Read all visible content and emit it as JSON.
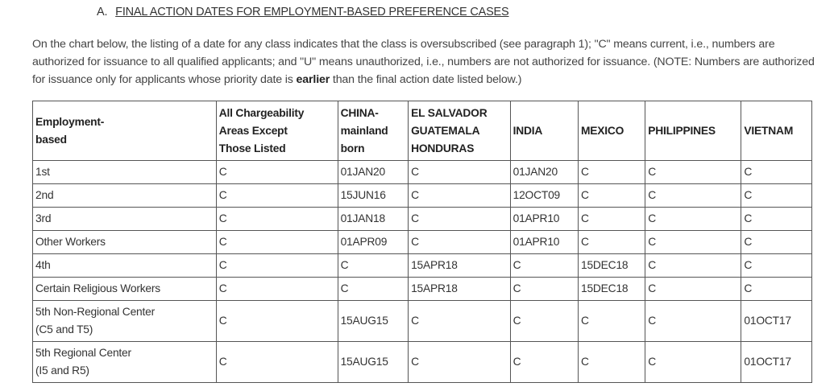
{
  "heading": {
    "letter": "A.",
    "title": "FINAL ACTION DATES FOR EMPLOYMENT-BASED PREFERENCE CASES"
  },
  "intro": {
    "text_before": "On the chart below, the listing of a date for any class indicates that the class is oversubscribed (see paragraph 1); \"C\" means current, i.e., numbers are authorized for issuance to all qualified applicants; and \"U\" means unauthorized, i.e., numbers are not authorized for issuance. (NOTE: Numbers are authorized for issuance only for applicants whose priority date is ",
    "emphasis": "earlier",
    "text_after": " than the final action date listed below.)"
  },
  "table": {
    "headers": [
      [
        "Employment-",
        "based"
      ],
      [
        "All Chargeability",
        "Areas Except",
        "Those Listed"
      ],
      [
        "CHINA-",
        "mainland",
        "born"
      ],
      [
        "EL SALVADOR",
        "GUATEMALA",
        "HONDURAS"
      ],
      [
        "INDIA"
      ],
      [
        "MEXICO"
      ],
      [
        "PHILIPPINES"
      ],
      [
        "VIETNAM"
      ]
    ],
    "rows": [
      {
        "label": [
          "1st"
        ],
        "cells": [
          "C",
          "01JAN20",
          "C",
          "01JAN20",
          "C",
          "C",
          "C"
        ]
      },
      {
        "label": [
          "2nd"
        ],
        "cells": [
          "C",
          "15JUN16",
          "C",
          "12OCT09",
          "C",
          "C",
          "C"
        ]
      },
      {
        "label": [
          "3rd"
        ],
        "cells": [
          "C",
          "01JAN18",
          "C",
          "01APR10",
          "C",
          "C",
          "C"
        ]
      },
      {
        "label": [
          "Other Workers"
        ],
        "cells": [
          "C",
          "01APR09",
          "C",
          "01APR10",
          "C",
          "C",
          "C"
        ]
      },
      {
        "label": [
          "4th"
        ],
        "cells": [
          "C",
          "C",
          "15APR18",
          "C",
          "15DEC18",
          "C",
          "C"
        ]
      },
      {
        "label": [
          "Certain Religious Workers"
        ],
        "cells": [
          "C",
          "C",
          "15APR18",
          "C",
          "15DEC18",
          "C",
          "C"
        ]
      },
      {
        "label": [
          "5th Non-Regional Center",
          "(C5 and T5)"
        ],
        "cells": [
          "C",
          "15AUG15",
          "C",
          "C",
          "C",
          "C",
          "01OCT17"
        ]
      },
      {
        "label": [
          "5th Regional Center",
          "(I5 and R5)"
        ],
        "cells": [
          "C",
          "15AUG15",
          "C",
          "C",
          "C",
          "C",
          "01OCT17"
        ]
      }
    ]
  }
}
